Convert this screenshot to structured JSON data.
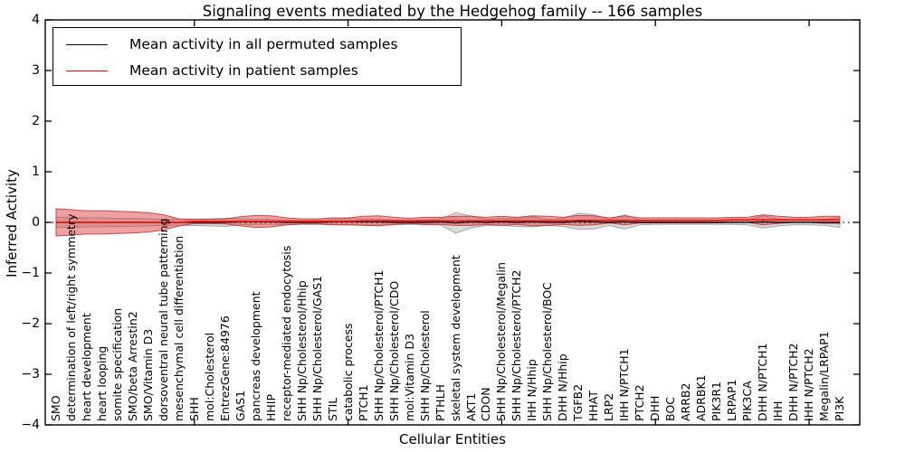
{
  "title": "Signaling events mediated by the Hedgehog family -- 166 samples",
  "xlabel": "Cellular Entities",
  "ylabel": "Inferred Activity",
  "legend": {
    "position": "upper left",
    "entries": [
      {
        "label": "Mean activity in all permuted samples",
        "color": "#000000"
      },
      {
        "label": "Mean activity in patient samples",
        "color": "#ff0000"
      }
    ]
  },
  "axes": {
    "yticks": [
      "4",
      "3",
      "2",
      "1",
      "0",
      "−1",
      "−2",
      "−3",
      "−4"
    ],
    "ytick_values": [
      4,
      3,
      2,
      1,
      0,
      -1,
      -2,
      -3,
      -4
    ],
    "xtick_values_top": [
      10,
      20,
      30,
      40,
      50
    ],
    "ylim": [
      -4,
      4
    ],
    "grid": false
  },
  "chart_data": {
    "type": "line",
    "title": "Signaling events mediated by the Hedgehog family -- 166 samples",
    "xlabel": "Cellular Entities",
    "ylabel": "Inferred Activity",
    "ylim": [
      -4,
      4
    ],
    "legend_position": "upper left",
    "zero_reference_line": {
      "y": 0,
      "style": "dotted",
      "color": "#000000"
    },
    "categories": [
      "SMO",
      "determination of left/right symmetry",
      "heart development",
      "heart looping",
      "somite specification",
      "SMO/beta Arrestin2",
      "SMO/Vitamin D3",
      "dorsoventral neural tube patterning",
      "mesenchymal cell differentiation",
      "SHH",
      "mol:Cholesterol",
      "EntrezGene:84976",
      "GAS1",
      "pancreas development",
      "HHIP",
      "receptor-mediated endocytosis",
      "SHH Np/Cholesterol/Hhip",
      "SHH Np/Cholesterol/GAS1",
      "STIL",
      "catabolic process",
      "PTCH1",
      "SHH Np/Cholesterol/PTCH1",
      "SHH Np/Cholesterol/CDO",
      "mol:Vitamin D3",
      "SHH Np/Cholesterol",
      "PTHLH",
      "skeletal system development",
      "AKT1",
      "CDON",
      "SHH Np/Cholesterol/Megalin",
      "SHH Np/Cholesterol/PTCH2",
      "IHH N/Hhip",
      "SHH Np/Cholesterol/BOC",
      "DHH N/Hhip",
      "TGFB2",
      "HHAT",
      "LRP2",
      "IHH N/PTCH1",
      "PTCH2",
      "DHH",
      "BOC",
      "ARRB2",
      "ADRBK1",
      "PIK3R1",
      "LRPAP1",
      "PIK3CA",
      "DHH N/PTCH1",
      "IHH",
      "DHH N/PTCH2",
      "IHH N/PTCH2",
      "Megalin/LRPAP1",
      "PI3K"
    ],
    "series": [
      {
        "name": "Mean activity in all permuted samples",
        "role": "permuted_mean",
        "color": "#000000",
        "style": "solid",
        "values": [
          0,
          0,
          0,
          0,
          0,
          0,
          0,
          0,
          0,
          0,
          0,
          0,
          0.01,
          0.01,
          0.01,
          0,
          0,
          0,
          0.01,
          0.01,
          0.01,
          0.01,
          0,
          0,
          0,
          0.01,
          -0.01,
          0.01,
          0,
          0.01,
          0,
          0.01,
          0,
          0,
          0.02,
          0.01,
          0,
          0.01,
          0,
          0,
          0,
          0,
          0,
          0,
          0,
          0,
          0.01,
          0,
          0,
          0,
          0,
          0
        ]
      },
      {
        "name": "Mean activity in patient samples",
        "role": "patient_mean",
        "color": "#ee1111",
        "style": "solid",
        "values": [
          0,
          0,
          0,
          0,
          0,
          0,
          0,
          0,
          0,
          0.02,
          0.02,
          0.02,
          0.02,
          0.02,
          0.02,
          0.02,
          0.02,
          0.02,
          0.02,
          0.02,
          0.03,
          0.03,
          0.03,
          0.03,
          0.03,
          0.03,
          0.03,
          0.03,
          0.03,
          0.03,
          0.03,
          0.03,
          0.03,
          0.03,
          0.04,
          0.04,
          0.04,
          0.04,
          0.04,
          0.04,
          0.04,
          0.04,
          0.04,
          0.04,
          0.05,
          0.05,
          0.05,
          0.05,
          0.05,
          0.05,
          0.05,
          0.05
        ]
      }
    ],
    "bands": [
      {
        "name": "permuted samples spread (±1 sd)",
        "center_role": "permuted_mean",
        "color": "#8c8c8c",
        "fill_opacity": 0.32,
        "edge_color": "#9a9a9a",
        "halfwidths": [
          0.1,
          0.1,
          0.09,
          0.09,
          0.08,
          0.08,
          0.07,
          0.06,
          0.06,
          0.06,
          0.07,
          0.08,
          0.06,
          0.05,
          0.05,
          0.05,
          0.04,
          0.04,
          0.05,
          0.06,
          0.06,
          0.06,
          0.05,
          0.04,
          0.05,
          0.06,
          0.2,
          0.12,
          0.06,
          0.07,
          0.08,
          0.1,
          0.06,
          0.08,
          0.16,
          0.14,
          0.06,
          0.14,
          0.05,
          0.04,
          0.04,
          0.04,
          0.04,
          0.04,
          0.04,
          0.05,
          0.12,
          0.07,
          0.05,
          0.05,
          0.06,
          0.1
        ]
      },
      {
        "name": "patient samples spread (±1 sd)",
        "center_role": "patient_mean",
        "color": "#dd4444",
        "fill_opacity": 0.5,
        "edge_color": "#c23434",
        "halfwidths": [
          0.27,
          0.25,
          0.23,
          0.23,
          0.22,
          0.21,
          0.19,
          0.15,
          0.07,
          0.045,
          0.045,
          0.05,
          0.09,
          0.12,
          0.11,
          0.07,
          0.05,
          0.05,
          0.07,
          0.07,
          0.09,
          0.1,
          0.07,
          0.05,
          0.07,
          0.07,
          0.09,
          0.09,
          0.07,
          0.09,
          0.07,
          0.1,
          0.09,
          0.07,
          0.1,
          0.09,
          0.05,
          0.09,
          0.05,
          0.05,
          0.05,
          0.05,
          0.05,
          0.05,
          0.05,
          0.05,
          0.1,
          0.07,
          0.05,
          0.05,
          0.07,
          0.07
        ]
      }
    ]
  }
}
